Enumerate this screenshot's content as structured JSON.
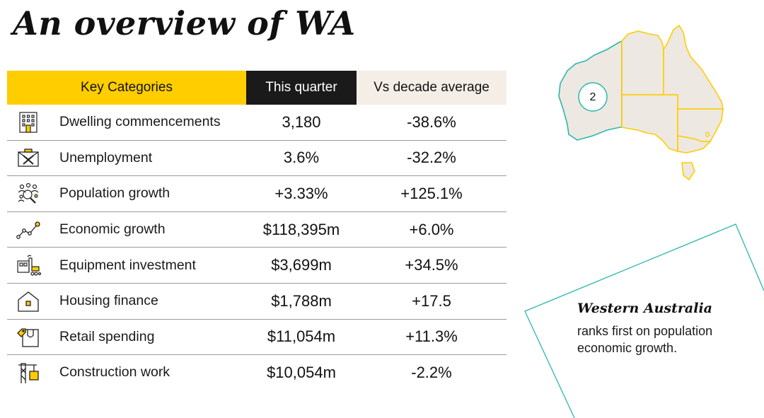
{
  "title": "An overview of WA",
  "table": {
    "headers": {
      "category": "Key Categories",
      "this_quarter": "This quarter",
      "vs_decade": "Vs decade average"
    },
    "rows": [
      {
        "icon": "apartment-building-icon",
        "label": "Dwelling commencements",
        "this_quarter": "3,180",
        "vs_decade": "-38.6%"
      },
      {
        "icon": "briefcase-cross-icon",
        "label": "Unemployment",
        "this_quarter": "3.6%",
        "vs_decade": "-32.2%"
      },
      {
        "icon": "people-magnifier-icon",
        "label": "Population growth",
        "this_quarter": "+3.33%",
        "vs_decade": "+125.1%"
      },
      {
        "icon": "trend-line-icon",
        "label": "Economic growth",
        "this_quarter": "$118,395m",
        "vs_decade": "+6.0%"
      },
      {
        "icon": "factory-machine-icon",
        "label": "Equipment investment",
        "this_quarter": "$3,699m",
        "vs_decade": "+34.5%"
      },
      {
        "icon": "house-icon",
        "label": "Housing finance",
        "this_quarter": "$1,788m",
        "vs_decade": "+17.5"
      },
      {
        "icon": "shopping-bag-tag-icon",
        "label": "Retail spending",
        "this_quarter": "$11,054m",
        "vs_decade": "+11.3%"
      },
      {
        "icon": "crane-icon",
        "label": "Construction work",
        "this_quarter": "$10,054m",
        "vs_decade": "-2.2%"
      }
    ]
  },
  "map": {
    "rank_badge": "2",
    "highlight_color": "#2bb8ac",
    "border_color": "#ffcd00",
    "land_color": "#ede8e1"
  },
  "callout": {
    "heading": "Western Australia",
    "body": "ranks first on population economic growth.",
    "frame_color": "#2bb8ac"
  },
  "colors": {
    "accent_yellow": "#ffcd00",
    "header_dark": "#1a1a1a",
    "header_beige": "#f5eee6"
  }
}
